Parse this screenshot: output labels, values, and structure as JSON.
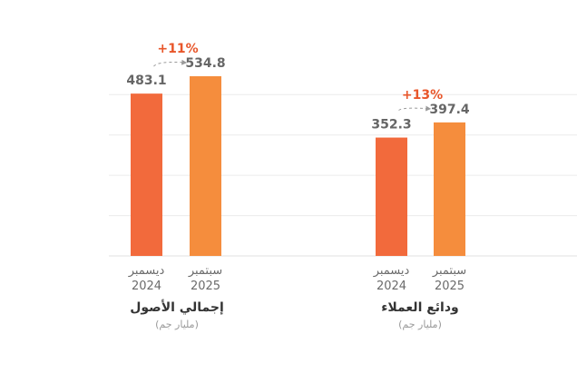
{
  "chart_data": {
    "type": "bar",
    "ylim": [
      0,
      600
    ],
    "grid": true,
    "gridlines": [
      0,
      120,
      240,
      360,
      480
    ],
    "colors": {
      "first": "#f26a3c",
      "second": "#f58d3d",
      "growth": "#e8562a"
    },
    "categories": [
      {
        "line1": "ديسمبر",
        "line2": "2024"
      },
      {
        "line1": "سبتمبر",
        "line2": "2025"
      }
    ],
    "groups": [
      {
        "title": "إجمالي الأصول",
        "unit": "(مليار جم)",
        "values": [
          483.1,
          534.8
        ],
        "value_labels": [
          "483.1",
          "534.8"
        ],
        "growth": "+11%"
      },
      {
        "title": "ودائع العملاء",
        "unit": "(مليار جم)",
        "values": [
          352.3,
          397.4
        ],
        "value_labels": [
          "352.3",
          "397.4"
        ],
        "growth": "+13%"
      }
    ]
  }
}
